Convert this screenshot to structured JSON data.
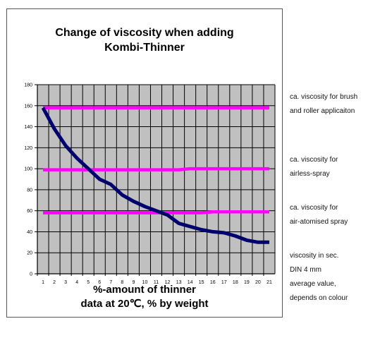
{
  "chart_data": {
    "type": "line",
    "title_lines": [
      "Change of viscosity when adding",
      "Kombi-Thinner"
    ],
    "xlabel_lines": [
      "%-amount of thinner",
      "data at 20℃, % by weight"
    ],
    "ylabel": "",
    "categories": [
      1,
      2,
      3,
      4,
      5,
      6,
      7,
      8,
      9,
      10,
      11,
      12,
      13,
      14,
      15,
      16,
      17,
      18,
      19,
      20,
      21
    ],
    "ylim": [
      0,
      180
    ],
    "yticks": [
      0,
      20,
      40,
      60,
      80,
      100,
      120,
      140,
      160,
      180
    ],
    "grid": true,
    "plot_background": "#c0c0c0",
    "series": [
      {
        "color": "#ff00ff",
        "values": [
          158,
          158,
          158,
          158,
          158,
          158,
          158,
          158,
          158,
          158,
          158,
          158,
          158,
          158,
          158,
          158,
          158,
          158,
          158,
          158,
          158
        ]
      },
      {
        "color": "#ff00ff",
        "values": [
          99,
          99,
          99,
          99,
          99,
          99,
          99,
          99,
          99,
          99,
          99,
          99,
          99,
          100,
          100,
          100,
          100,
          100,
          100,
          100,
          100
        ]
      },
      {
        "color": "#ff00ff",
        "values": [
          58,
          58,
          58,
          58,
          58,
          58,
          58,
          58,
          58,
          58,
          58,
          58,
          58,
          58,
          58,
          59,
          59,
          59,
          59,
          59,
          59
        ]
      },
      {
        "color": "#00006e",
        "values": [
          158,
          138,
          122,
          110,
          100,
          90,
          85,
          75,
          69,
          64,
          60,
          56,
          48,
          45,
          42,
          40,
          39,
          36,
          32,
          30,
          30
        ]
      }
    ],
    "annotations": [
      [
        "ca. viscosity for brush",
        "and roller applicaiton"
      ],
      [
        "ca. viscosity for",
        "airless-spray"
      ],
      [
        "ca. viscosity for",
        "air-atomised spray"
      ],
      [
        "viscosity in sec.",
        "DIN 4 mm",
        "average value,",
        "depends on colour"
      ]
    ]
  }
}
